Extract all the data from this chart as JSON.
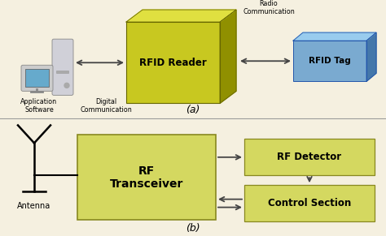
{
  "bg_color": "#f5f0e0",
  "rfid_reader_face": "#c8c820",
  "rfid_reader_side": "#909000",
  "rfid_reader_top": "#e0e040",
  "rfid_tag_face": "#7aaad0",
  "rfid_tag_side": "#4477aa",
  "rfid_tag_top": "#99ccee",
  "rf_box_face": "#d4d860",
  "rf_box_edge": "#888820",
  "arrow_color": "#444444",
  "label_a": "(a)",
  "label_b": "(b)",
  "rfid_reader_label": "RFID Reader",
  "rfid_tag_label": "RFID Tag",
  "radio_comm_label": "Radio\nCommunication",
  "digital_comm_label": "Digital\nCommunication",
  "app_software_label": "Application\nSoftware",
  "rf_transceiver_label": "RF\nTransceiver",
  "rf_detector_label": "RF Detector",
  "control_section_label": "Control Section",
  "antenna_label": "Antenna"
}
